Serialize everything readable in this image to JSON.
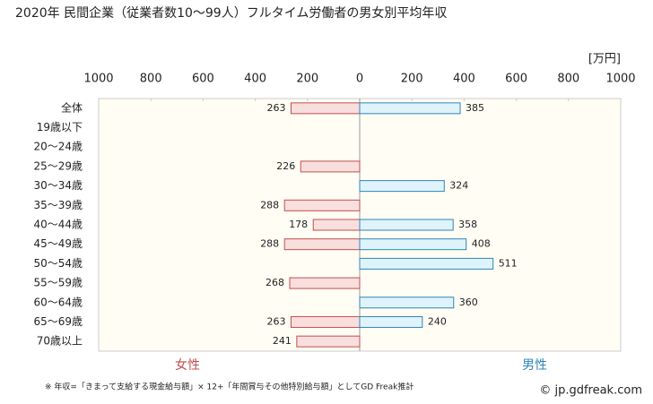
{
  "chart_data": {
    "type": "butterfly-bar",
    "title": "2020年 民間企業（従業者数10～99人）フルタイム労働者の男女別平均年収",
    "unit": "[万円]",
    "categories": [
      "全体",
      "19歳以下",
      "20～24歳",
      "25～29歳",
      "30～34歳",
      "35～39歳",
      "40～44歳",
      "45～49歳",
      "50～54歳",
      "55～59歳",
      "60～64歳",
      "65～69歳",
      "70歳以上"
    ],
    "series": [
      {
        "name": "女性",
        "color": "#c0504d",
        "fill": "#f9dede",
        "side": "left",
        "values": [
          263,
          null,
          null,
          226,
          null,
          288,
          178,
          288,
          null,
          268,
          null,
          263,
          241
        ]
      },
      {
        "name": "男性",
        "color": "#2e86b8",
        "fill": "#dff3fb",
        "side": "right",
        "values": [
          385,
          null,
          null,
          null,
          324,
          null,
          358,
          408,
          511,
          null,
          360,
          240,
          null
        ]
      }
    ],
    "xlim": [
      -1000,
      1000
    ],
    "xticks": [
      {
        "value": -1000,
        "label": "1000"
      },
      {
        "value": -800,
        "label": "800"
      },
      {
        "value": -600,
        "label": "600"
      },
      {
        "value": -400,
        "label": "400"
      },
      {
        "value": -200,
        "label": "200"
      },
      0,
      200,
      400,
      600,
      800,
      1000
    ],
    "note": "※ 年収=「きまって支給する現金給与額」× 12+「年間賞与その他特別給与額」としてGD Freak推計",
    "source": "© jp.gdfreak.com"
  }
}
